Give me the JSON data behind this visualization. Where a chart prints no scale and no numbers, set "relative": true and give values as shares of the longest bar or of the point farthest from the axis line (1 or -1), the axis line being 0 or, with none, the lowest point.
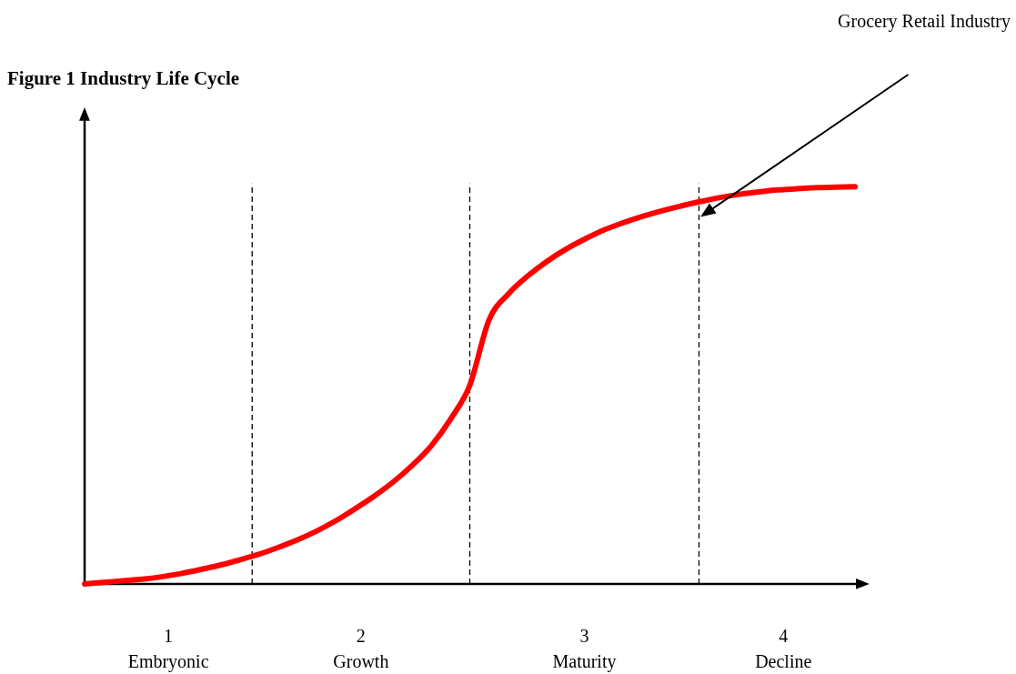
{
  "chart_data": {
    "type": "line",
    "title": "Figure 1 Industry Life Cycle",
    "relative": true,
    "legend": false,
    "marker": "none",
    "line_style": "solid",
    "categories": [
      null,
      null,
      null,
      null,
      null,
      null,
      null,
      null,
      null,
      null,
      null,
      null,
      null,
      null,
      null,
      null,
      null,
      null,
      null,
      null,
      null,
      null,
      null,
      null,
      null,
      null,
      null,
      null,
      null,
      null,
      null,
      null,
      null,
      null,
      null,
      null,
      null,
      null,
      null,
      null,
      null
    ],
    "series": [
      {
        "color": "#ff0000",
        "values": [
          0,
          0.004,
          0.008,
          0.012,
          0.018,
          0.026,
          0.036,
          0.047,
          0.06,
          0.074,
          0.091,
          0.11,
          0.132,
          0.158,
          0.188,
          0.22,
          0.256,
          0.298,
          0.348,
          0.415,
          0.5,
          0.665,
          0.73,
          0.775,
          0.812,
          0.843,
          0.869,
          0.892,
          0.91,
          0.926,
          0.94,
          0.952,
          0.963,
          0.973,
          0.981,
          0.987,
          0.992,
          0.995,
          0.998,
          0.999,
          1
        ]
      }
    ],
    "annotations": [
      "1\nEmbryonic",
      "2\nGrowth",
      "3\nMaturity",
      "4\nDecline",
      "Grocery Retail Industry"
    ]
  }
}
